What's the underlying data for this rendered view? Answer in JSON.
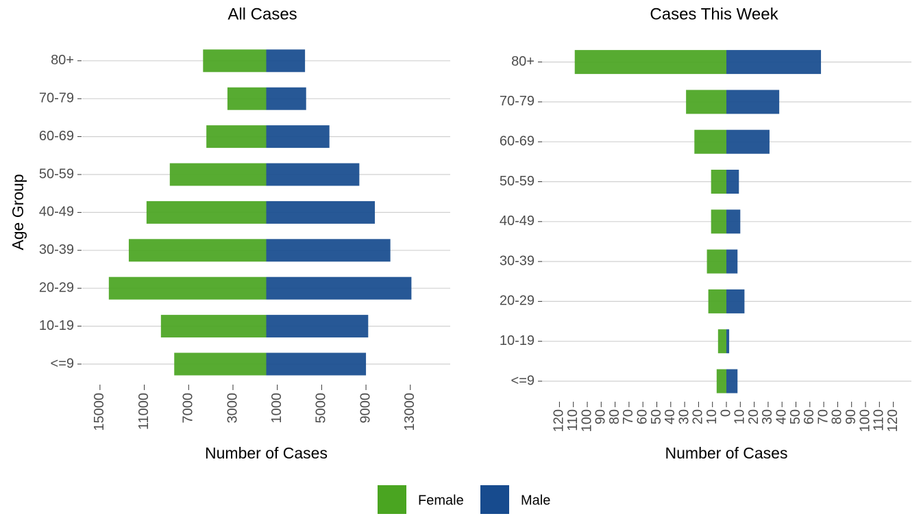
{
  "chart_data": [
    {
      "type": "bar",
      "orientation": "horizontal",
      "title": "All Cases",
      "x_label": "Number of Cases",
      "y_label": "Age Group",
      "categories": [
        "<=9",
        "10-19",
        "20-29",
        "30-39",
        "40-49",
        "50-59",
        "60-69",
        "70-79",
        "80+"
      ],
      "series": [
        {
          "name": "Female",
          "color": "#4aa521",
          "values": [
            -8300,
            -9500,
            -14200,
            -12400,
            -10800,
            -8700,
            -5400,
            -3500,
            -5700
          ]
        },
        {
          "name": "Male",
          "color": "#174b8e",
          "values": [
            9000,
            9200,
            13100,
            11200,
            9800,
            8400,
            5700,
            3600,
            3500
          ]
        }
      ],
      "xlim": [
        -16600,
        16600
      ],
      "xticks": [
        {
          "value": -15000,
          "label": "15000"
        },
        {
          "value": -11000,
          "label": "11000"
        },
        {
          "value": -7000,
          "label": "7000"
        },
        {
          "value": -3000,
          "label": "3000"
        },
        1000,
        5000,
        9000,
        13000
      ],
      "grid": true
    },
    {
      "type": "bar",
      "orientation": "horizontal",
      "title": "Cases This Week",
      "x_label": "Number of Cases",
      "categories": [
        "<=9",
        "10-19",
        "20-29",
        "30-39",
        "40-49",
        "50-59",
        "60-69",
        "70-79",
        "80+"
      ],
      "series": [
        {
          "color": "#4aa521",
          "values": [
            -7,
            -6,
            -13,
            -14,
            -11,
            -11,
            -23,
            -29,
            -109
          ]
        },
        {
          "color": "#174b8e",
          "values": [
            8,
            2,
            13,
            8,
            10,
            9,
            31,
            38,
            68
          ]
        }
      ],
      "xlim": [
        -133,
        133
      ],
      "xticks": [
        {
          "value": -120,
          "label": "120"
        },
        {
          "value": -110,
          "label": "110"
        },
        {
          "value": -100,
          "label": "100"
        },
        {
          "value": -90,
          "label": "90"
        },
        {
          "value": -80,
          "label": "80"
        },
        {
          "value": -70,
          "label": "70"
        },
        {
          "value": -60,
          "label": "60"
        },
        {
          "value": -50,
          "label": "50"
        },
        {
          "value": -40,
          "label": "40"
        },
        {
          "value": -30,
          "label": "30"
        },
        {
          "value": -20,
          "label": "20"
        },
        {
          "value": -10,
          "label": "10"
        },
        0,
        10,
        20,
        30,
        40,
        50,
        60,
        70,
        80,
        90,
        100,
        110,
        120
      ],
      "grid": true
    }
  ]
}
